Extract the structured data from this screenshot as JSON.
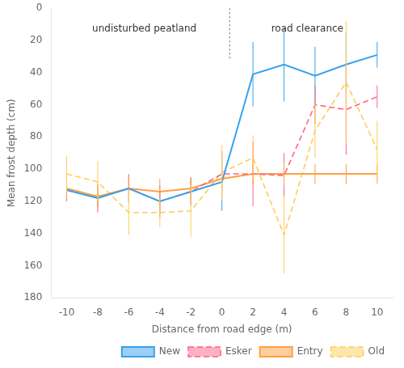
{
  "chart_data": {
    "type": "line",
    "x": [
      -10,
      -8,
      -6,
      -4,
      -2,
      0,
      2,
      4,
      6,
      8,
      10
    ],
    "xlabel": "Distance from road edge (m)",
    "ylabel": "Mean frost depth (cm)",
    "xlim": [
      -11,
      11
    ],
    "ylim": [
      180,
      0
    ],
    "xticks": [
      -10,
      -8,
      -6,
      -4,
      -2,
      0,
      2,
      4,
      6,
      8,
      10
    ],
    "yticks": [
      0,
      20,
      40,
      60,
      80,
      100,
      120,
      140,
      160,
      180
    ],
    "grid": false,
    "legend": "lower right",
    "series": [
      {
        "name": "New",
        "values": [
          113,
          118,
          112,
          120,
          114,
          108,
          41,
          35,
          42,
          35,
          29
        ],
        "errors": [
          5,
          5,
          8,
          6,
          8,
          18,
          20,
          23,
          18,
          20,
          8
        ],
        "line_style": "solid"
      },
      {
        "name": "Esker",
        "values": [
          113,
          118,
          112,
          120,
          114,
          103,
          103,
          104,
          60,
          63,
          55
        ],
        "errors": [
          7,
          9,
          9,
          10,
          9,
          14,
          20,
          14,
          12,
          28,
          7
        ],
        "line_style": "dashed"
      },
      {
        "name": "Entry",
        "values": [
          112,
          117,
          112,
          114,
          112,
          106,
          103,
          103,
          103,
          103,
          103
        ],
        "errors": [
          6,
          7,
          8,
          8,
          7,
          9,
          7,
          7,
          6,
          6,
          6
        ],
        "line_style": "solid"
      },
      {
        "name": "Old",
        "values": [
          103,
          108,
          127,
          127,
          126,
          102,
          93,
          141,
          76,
          46,
          88
        ],
        "errors": [
          11,
          13,
          14,
          9,
          16,
          17,
          14,
          24,
          17,
          38,
          18
        ],
        "line_style": "dashed"
      }
    ],
    "vlines": [
      {
        "x": 0.5,
        "y": [
          0,
          32
        ],
        "line_style": "dotted"
      }
    ],
    "annotations": [
      {
        "text": "undisturbed peatland",
        "x": -5.0,
        "y": 10
      },
      {
        "text": "road clearance",
        "x": 5.5,
        "y": 10
      }
    ]
  }
}
